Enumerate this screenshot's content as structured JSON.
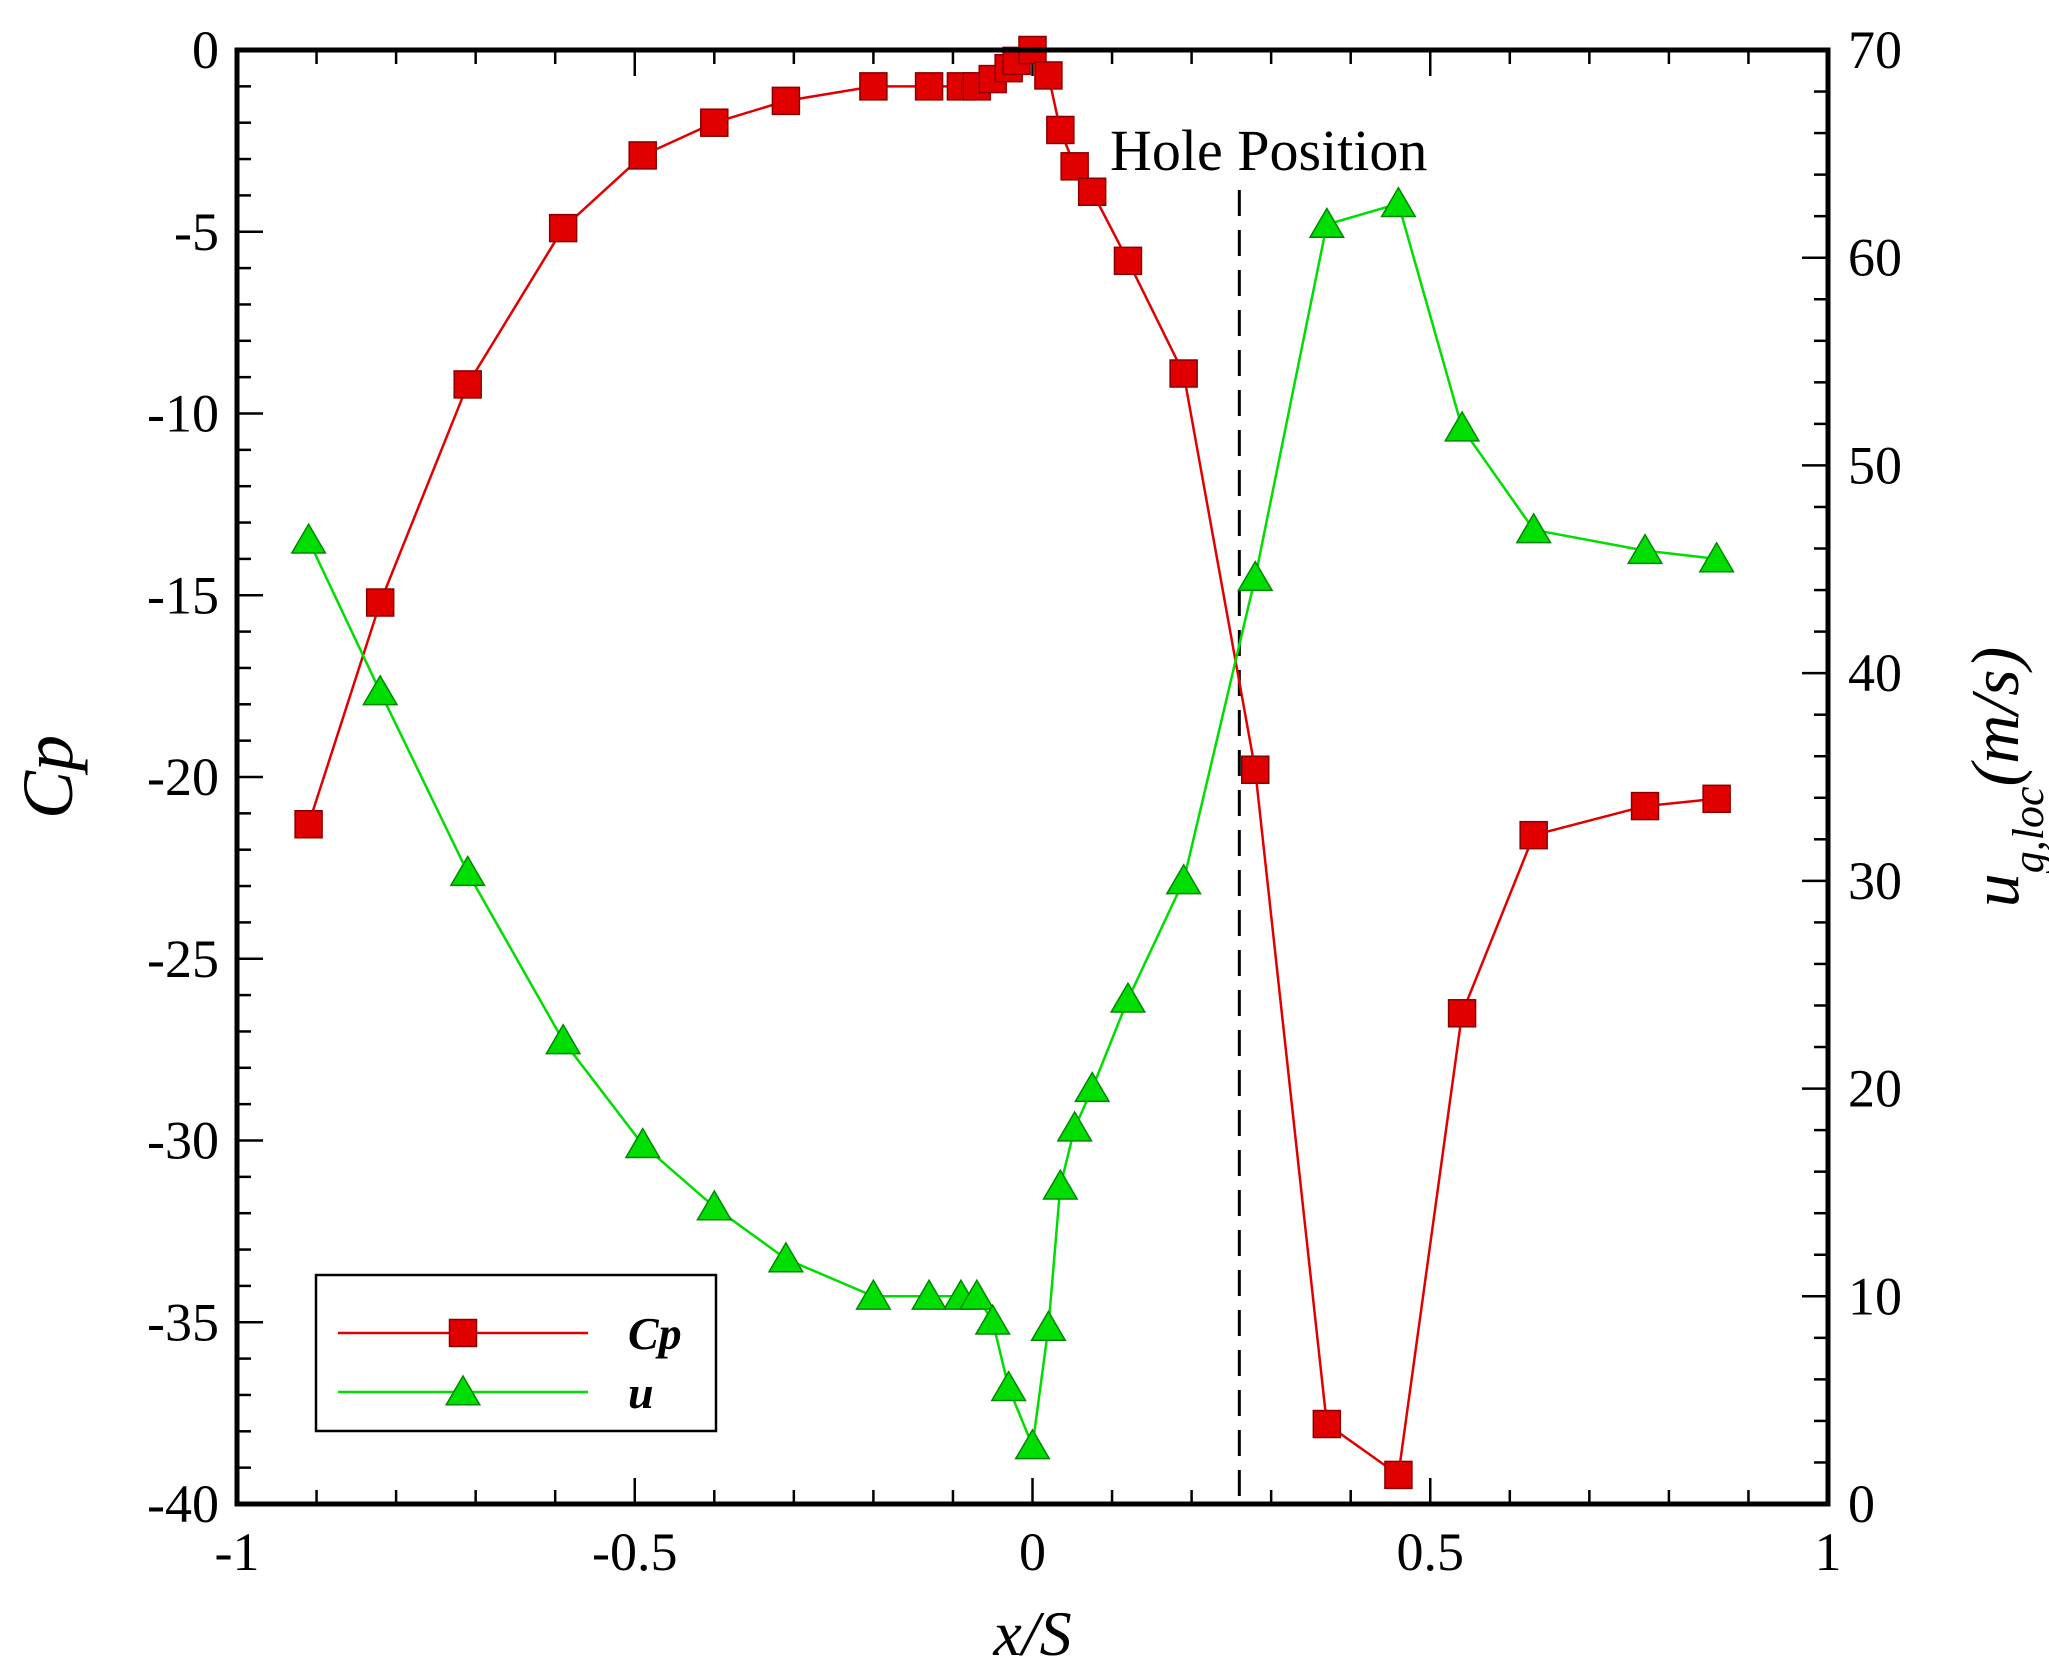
{
  "chart_data": {
    "type": "line",
    "x_axis": {
      "label": "x/S",
      "range": [
        -1,
        1
      ],
      "ticks": [
        -1,
        -0.5,
        0,
        0.5,
        1
      ],
      "tick_labels": [
        "-1",
        "-0.5",
        "0",
        "0.5",
        "1"
      ]
    },
    "y_left": {
      "label": "Cp",
      "range": [
        -40,
        0
      ],
      "ticks": [
        0,
        -5,
        -10,
        -15,
        -20,
        -25,
        -30,
        -35,
        -40
      ],
      "tick_labels": [
        "0",
        "-5",
        "-10",
        "-15",
        "-20",
        "-25",
        "-30",
        "-35",
        "-40"
      ]
    },
    "y_right": {
      "label_main": "u",
      "label_sub": "g,loc",
      "label_units": "(m/s)",
      "range": [
        0,
        70
      ],
      "ticks": [
        0,
        10,
        20,
        30,
        40,
        50,
        60,
        70
      ],
      "tick_labels": [
        "0",
        "10",
        "20",
        "30",
        "40",
        "50",
        "60",
        "70"
      ]
    },
    "annotation": {
      "text": "Hole Position",
      "x": 0.26
    },
    "legend": {
      "position": "bottom-left",
      "entries": [
        "Cp",
        "u"
      ]
    },
    "series": [
      {
        "name": "Cp",
        "axis": "left",
        "color": "#e00000",
        "marker": "square",
        "x": [
          -0.91,
          -0.82,
          -0.71,
          -0.59,
          -0.49,
          -0.4,
          -0.31,
          -0.2,
          -0.13,
          -0.09,
          -0.07,
          -0.05,
          -0.03,
          -0.02,
          0.0,
          0.02,
          0.035,
          0.053,
          0.075,
          0.12,
          0.19,
          0.28,
          0.37,
          0.46,
          0.54,
          0.63,
          0.77,
          0.86
        ],
        "y": [
          -21.3,
          -15.2,
          -9.2,
          -4.9,
          -2.9,
          -2.0,
          -1.4,
          -1.0,
          -1.0,
          -1.0,
          -1.0,
          -0.8,
          -0.5,
          -0.3,
          0.0,
          -0.7,
          -2.2,
          -3.2,
          -3.9,
          -5.8,
          -8.9,
          -19.8,
          -37.8,
          -39.2,
          -26.5,
          -21.6,
          -20.8,
          -20.6
        ]
      },
      {
        "name": "u",
        "axis": "right",
        "color": "#00dd00",
        "marker": "triangle",
        "x": [
          -0.91,
          -0.82,
          -0.71,
          -0.59,
          -0.49,
          -0.4,
          -0.31,
          -0.2,
          -0.13,
          -0.09,
          -0.07,
          -0.05,
          -0.03,
          0.0,
          0.02,
          0.035,
          0.053,
          0.075,
          0.12,
          0.19,
          0.28,
          0.37,
          0.46,
          0.54,
          0.63,
          0.77,
          0.86
        ],
        "y": [
          46.4,
          39.1,
          30.4,
          22.3,
          17.3,
          14.3,
          11.8,
          10.0,
          10.0,
          10.0,
          10.0,
          8.8,
          5.6,
          2.8,
          8.5,
          15.3,
          18.1,
          20.0,
          24.3,
          30.0,
          44.6,
          61.6,
          62.6,
          51.8,
          46.9,
          45.9,
          45.5
        ]
      }
    ]
  }
}
